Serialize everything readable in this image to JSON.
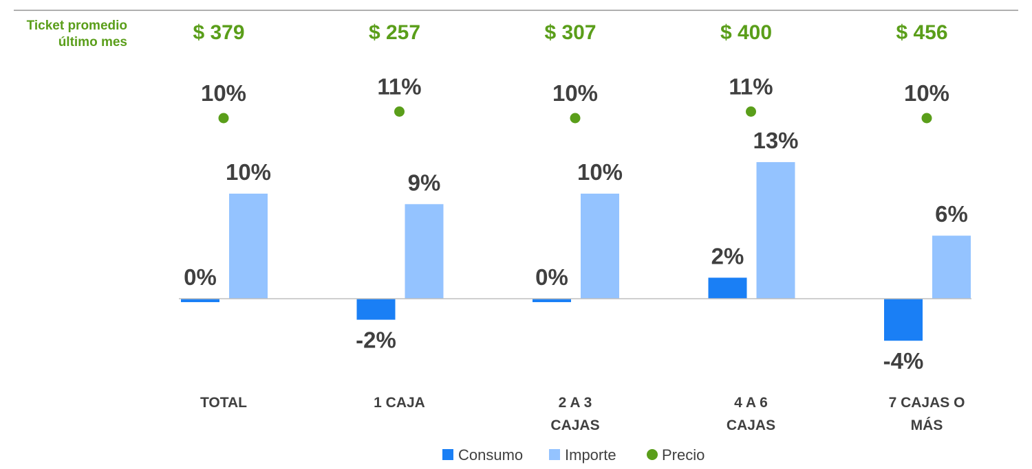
{
  "colors": {
    "consumo": "#1a7ff5",
    "importe": "#94c3ff",
    "precio": "#5a9e1a",
    "ticket_text": "#5a9e1a",
    "label_text": "#404040",
    "axis": "#bfbfbf",
    "top_rule": "#7f7f7f"
  },
  "ticket": {
    "label_line1": "Ticket promedio",
    "label_line2": "último mes",
    "values": [
      "$ 379",
      "$ 257",
      "$ 307",
      "$ 400",
      "$ 456"
    ]
  },
  "chart_data": {
    "type": "bar",
    "categories": [
      [
        "TOTAL"
      ],
      [
        "1 CAJA"
      ],
      [
        "2 A 3",
        "CAJAS"
      ],
      [
        "4 A 6",
        "CAJAS"
      ],
      [
        "7 CAJAS O",
        "MÁS"
      ]
    ],
    "series": [
      {
        "name": "Consumo",
        "type": "bar",
        "values": [
          0,
          -2,
          0,
          2,
          -4
        ],
        "labels": [
          "0%",
          "-2%",
          "0%",
          "2%",
          "-4%"
        ]
      },
      {
        "name": "Importe",
        "type": "bar",
        "values": [
          10,
          9,
          10,
          13,
          6
        ],
        "labels": [
          "10%",
          "9%",
          "10%",
          "13%",
          "6%"
        ]
      },
      {
        "name": "Precio",
        "type": "scatter",
        "values": [
          10,
          11,
          10,
          11,
          10
        ],
        "labels": [
          "10%",
          "11%",
          "10%",
          "11%",
          "10%"
        ]
      }
    ],
    "legend_position": "bottom",
    "grid": false
  }
}
